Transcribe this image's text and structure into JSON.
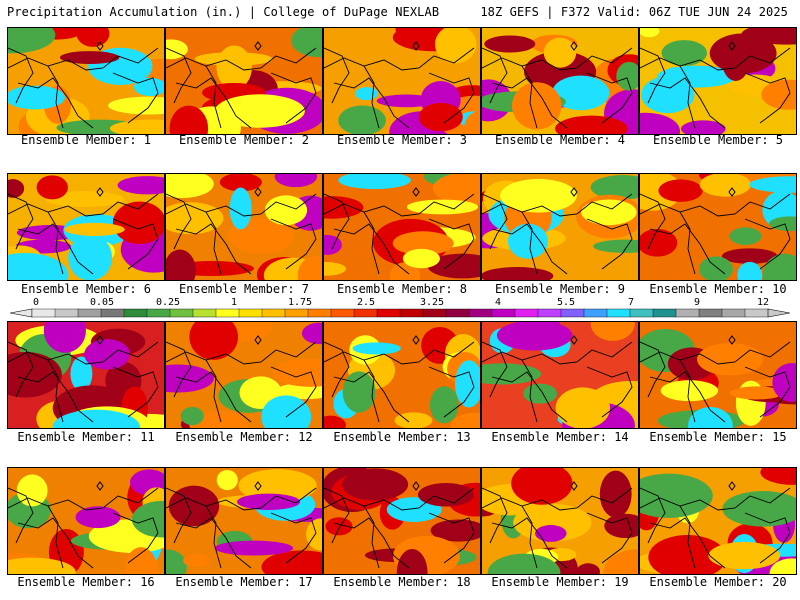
{
  "header": {
    "title_left": "Precipitation Accumulation (in.) | College of DuPage NEXLAB",
    "title_right": "18Z GEFS | F372 Valid: 06Z TUE JUN 24 2025"
  },
  "panel_label_prefix": "Ensemble Member: ",
  "members": [
    {
      "num": "1",
      "dominant_color": "#f5a000"
    },
    {
      "num": "2",
      "dominant_color": "#f07000"
    },
    {
      "num": "3",
      "dominant_color": "#f5a000"
    },
    {
      "num": "4",
      "dominant_color": "#f5b800"
    },
    {
      "num": "5",
      "dominant_color": "#f5c000"
    },
    {
      "num": "6",
      "dominant_color": "#f5b000"
    },
    {
      "num": "7",
      "dominant_color": "#f08000"
    },
    {
      "num": "8",
      "dominant_color": "#f07000"
    },
    {
      "num": "9",
      "dominant_color": "#f5a000"
    },
    {
      "num": "10",
      "dominant_color": "#f07000"
    },
    {
      "num": "11",
      "dominant_color": "#d82020"
    },
    {
      "num": "12",
      "dominant_color": "#f08000"
    },
    {
      "num": "13",
      "dominant_color": "#f07000"
    },
    {
      "num": "14",
      "dominant_color": "#e84020"
    },
    {
      "num": "15",
      "dominant_color": "#f07000"
    },
    {
      "num": "16",
      "dominant_color": "#f08000"
    },
    {
      "num": "17",
      "dominant_color": "#f08000"
    },
    {
      "num": "18",
      "dominant_color": "#f07000"
    },
    {
      "num": "19",
      "dominant_color": "#f5a000"
    },
    {
      "num": "20",
      "dominant_color": "#f5a000"
    }
  ],
  "colorbar": {
    "tick_labels": [
      "0",
      "0.05",
      "0.25",
      "1",
      "1.75",
      "2.5",
      "3.25",
      "4",
      "5.5",
      "7",
      "9",
      "12"
    ],
    "colors": [
      "#e8e8e8",
      "#c8c8c8",
      "#a0a0a0",
      "#787878",
      "#2e8b3a",
      "#48a848",
      "#70c040",
      "#b8e030",
      "#ffff20",
      "#ffe000",
      "#ffc000",
      "#ffa000",
      "#ff8000",
      "#ff5a00",
      "#f03000",
      "#e00000",
      "#c00000",
      "#a00018",
      "#900040",
      "#a00080",
      "#c000c0",
      "#e020f0",
      "#c040ff",
      "#8060ff",
      "#40a0ff",
      "#20e0ff",
      "#40c0c0",
      "#209090",
      "#b0b0b0",
      "#808080",
      "#a8a8a8",
      "#c8c8c8"
    ]
  }
}
